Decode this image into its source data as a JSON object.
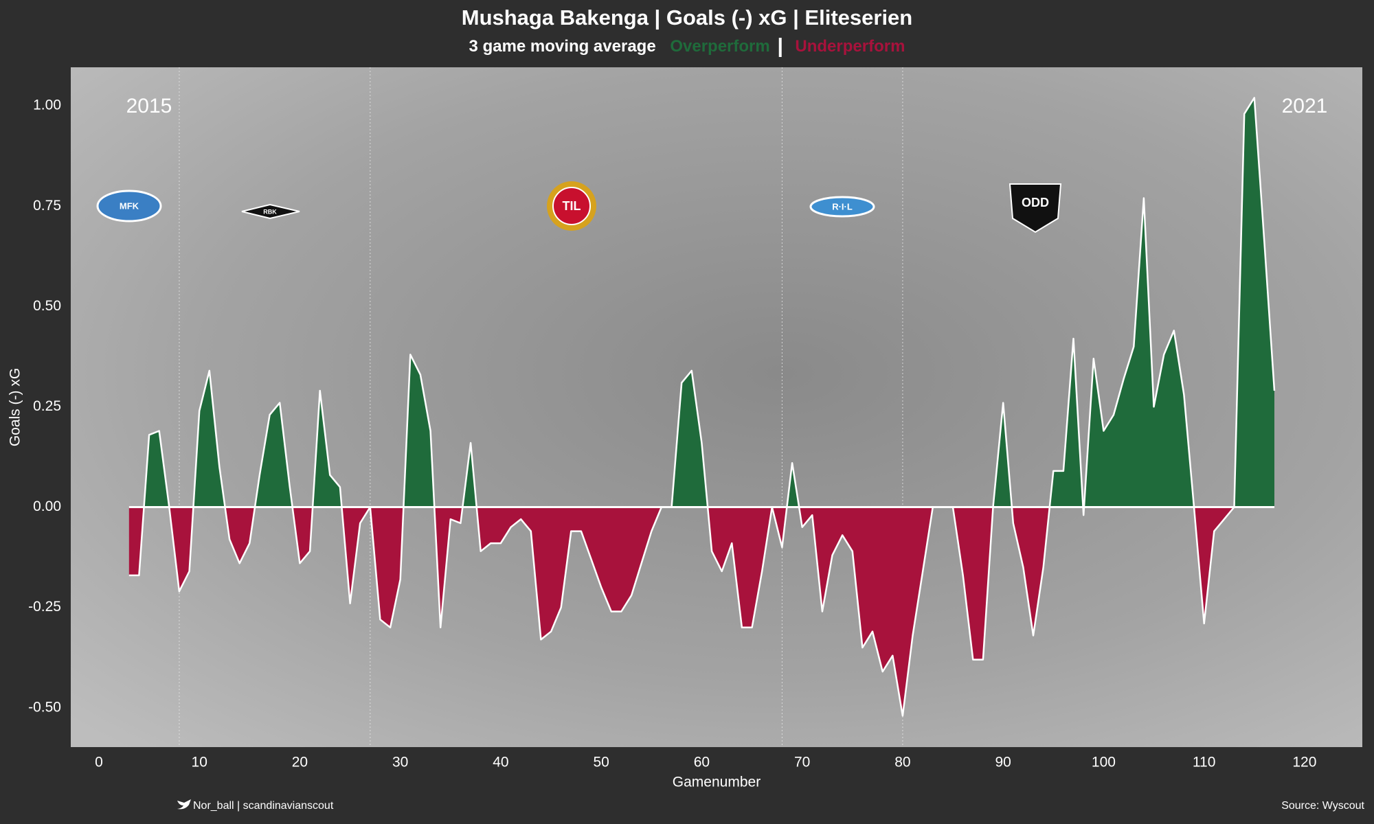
{
  "chart_data": {
    "type": "area",
    "title": "Mushaga Bakenga | Goals (-) xG | Eliteserien",
    "subtitle": "3 game moving average",
    "legend": [
      {
        "label": "Overperform",
        "color": "#1f6b3b"
      },
      {
        "label": "Underperform",
        "color": "#a8123c"
      }
    ],
    "xlabel": "Gamenumber",
    "ylabel": "Goals (-) xG",
    "annotations": [
      "2015",
      "2021"
    ],
    "x": [
      3,
      4,
      5,
      6,
      7,
      8,
      9,
      10,
      11,
      12,
      13,
      14,
      15,
      16,
      17,
      18,
      19,
      20,
      21,
      22,
      23,
      24,
      25,
      26,
      27,
      28,
      29,
      30,
      31,
      32,
      33,
      34,
      35,
      36,
      37,
      38,
      39,
      40,
      41,
      42,
      43,
      44,
      45,
      46,
      47,
      48,
      49,
      50,
      51,
      52,
      53,
      54,
      55,
      56,
      57,
      58,
      59,
      60,
      61,
      62,
      63,
      64,
      65,
      66,
      67,
      68,
      69,
      70,
      71,
      72,
      73,
      74,
      75,
      76,
      77,
      78,
      79,
      80,
      81,
      82,
      83,
      84,
      85,
      86,
      87,
      88,
      89,
      90,
      91,
      92,
      93,
      94,
      95,
      96,
      97,
      98,
      99,
      100,
      101,
      102,
      103,
      104,
      105,
      106,
      107,
      108,
      109,
      110,
      111,
      112,
      113,
      114,
      115,
      116,
      117
    ],
    "series": [
      {
        "values": [
          -0.17,
          -0.17,
          0.18,
          0.19,
          0.0,
          -0.21,
          -0.16,
          0.24,
          0.34,
          0.1,
          -0.08,
          -0.14,
          -0.09,
          0.08,
          0.23,
          0.26,
          0.05,
          -0.14,
          -0.11,
          0.29,
          0.08,
          0.05,
          -0.24,
          -0.04,
          0.0,
          -0.28,
          -0.3,
          -0.18,
          0.38,
          0.33,
          0.19,
          -0.3,
          -0.03,
          -0.04,
          0.16,
          -0.11,
          -0.09,
          -0.09,
          -0.05,
          -0.03,
          -0.06,
          -0.33,
          -0.31,
          -0.25,
          -0.06,
          -0.06,
          -0.13,
          -0.2,
          -0.26,
          -0.26,
          -0.22,
          -0.14,
          -0.06,
          0.0,
          0.0,
          0.31,
          0.34,
          0.16,
          -0.11,
          -0.16,
          -0.09,
          -0.3,
          -0.3,
          -0.16,
          0.0,
          -0.1,
          0.11,
          -0.05,
          -0.02,
          -0.26,
          -0.12,
          -0.07,
          -0.11,
          -0.35,
          -0.31,
          -0.41,
          -0.37,
          -0.52,
          -0.32,
          -0.16,
          0.0,
          0.0,
          0.0,
          -0.17,
          -0.38,
          -0.38,
          0.0,
          0.26,
          -0.04,
          -0.15,
          -0.32,
          -0.15,
          0.09,
          0.09,
          0.42,
          -0.02,
          0.37,
          0.19,
          0.23,
          0.32,
          0.4,
          0.77,
          0.25,
          0.38,
          0.44,
          0.28,
          0.0,
          -0.29,
          -0.06,
          -0.03,
          0.0,
          0.98,
          1.02,
          0.66,
          0.29
        ]
      }
    ],
    "positive_color": "#1f6b3b",
    "negative_color": "#a8123c",
    "line_color": "#ffffff",
    "season_breaks": [
      8,
      27,
      68,
      80
    ],
    "xlim": [
      -2.8,
      125.75
    ],
    "ylim": [
      -0.598,
      1.096
    ],
    "xticks": [
      0,
      10,
      20,
      30,
      40,
      50,
      60,
      70,
      80,
      90,
      100,
      110,
      120
    ],
    "yticks": [
      {
        "value": -0.5,
        "label": "-0.50"
      },
      -0.25,
      {
        "value": 0,
        "label": "0.00"
      },
      0.25,
      {
        "value": 0.5,
        "label": "0.50"
      },
      0.75,
      {
        "value": 1,
        "label": "1.00"
      }
    ]
  },
  "club_logos": [
    "MFK",
    "RBK",
    "TIL",
    "R·I·L",
    "ODD"
  ],
  "footer": {
    "credit": "Nor_ball | scandinavianscout",
    "source": "Source: Wyscout"
  }
}
